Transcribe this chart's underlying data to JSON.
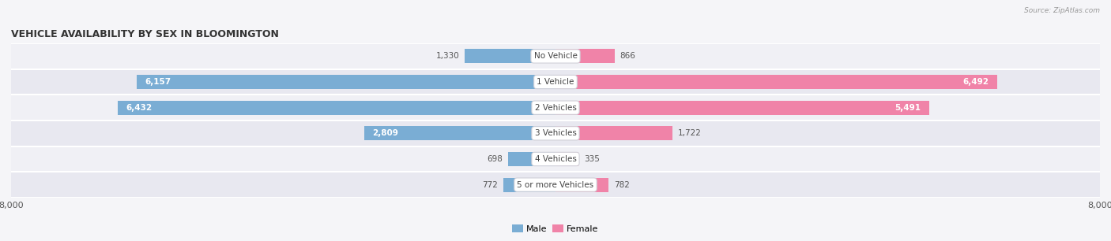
{
  "title": "VEHICLE AVAILABILITY BY SEX IN BLOOMINGTON",
  "source": "Source: ZipAtlas.com",
  "categories": [
    "No Vehicle",
    "1 Vehicle",
    "2 Vehicles",
    "3 Vehicles",
    "4 Vehicles",
    "5 or more Vehicles"
  ],
  "male_values": [
    1330,
    6157,
    6432,
    2809,
    698,
    772
  ],
  "female_values": [
    866,
    6492,
    5491,
    1722,
    335,
    782
  ],
  "male_color": "#7aadd4",
  "female_color": "#f083a8",
  "row_colors": [
    "#f0f0f5",
    "#e8e8f0",
    "#f0f0f5",
    "#e8e8f0",
    "#f0f0f5",
    "#e8e8f0"
  ],
  "xlim": 8000,
  "legend_male": "Male",
  "legend_female": "Female",
  "title_fontsize": 9,
  "label_fontsize": 7.5,
  "value_fontsize": 7.5,
  "axis_label_fontsize": 8,
  "background_color": "#f5f5f8"
}
